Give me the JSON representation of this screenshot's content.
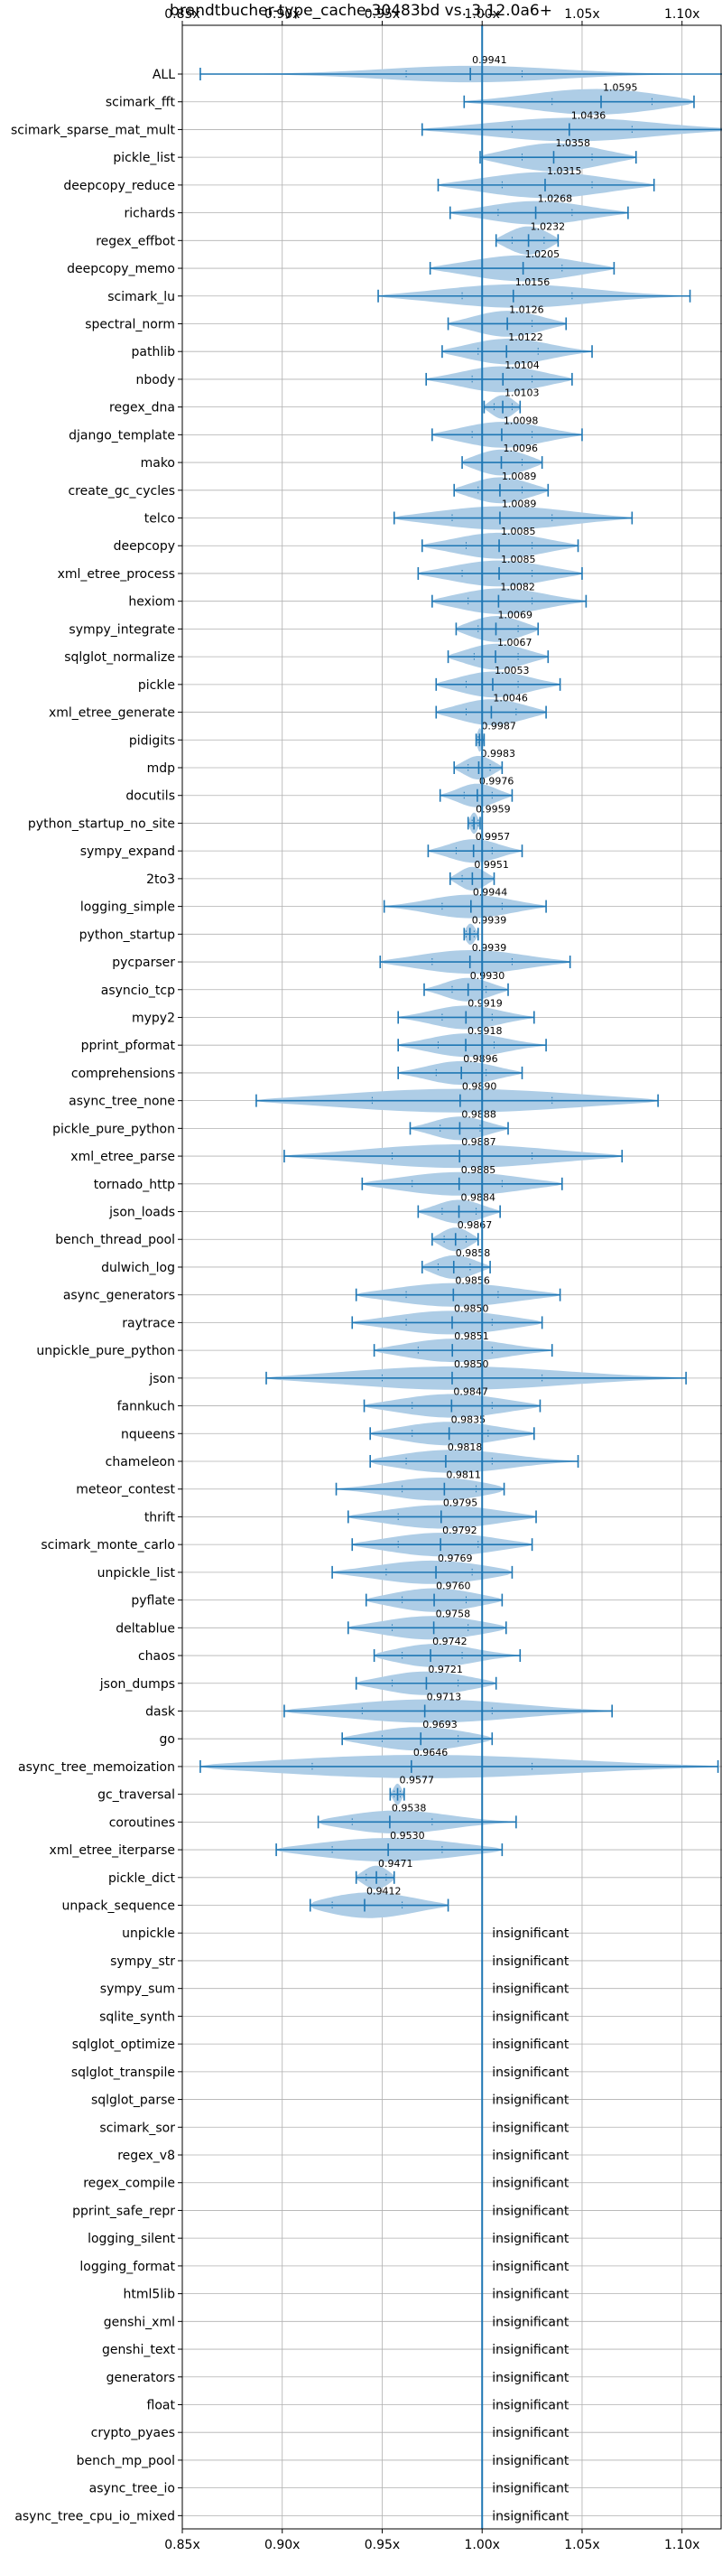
{
  "chart_data": {
    "type": "violin",
    "title": "brandtbucher-type_cache-30483bd vs. 3.12.0a6+",
    "xlabel": "",
    "ylabel": "",
    "xlim": [
      0.85,
      1.12
    ],
    "xticks": [
      0.85,
      0.9,
      0.95,
      1.0,
      1.05,
      1.1
    ],
    "xtick_labels": [
      "0.85x",
      "0.90x",
      "0.95x",
      "1.00x",
      "1.05x",
      "1.10x"
    ],
    "reference_line": 1.0,
    "grid": true,
    "colors": {
      "violin_fill": "#aecde6",
      "line": "#1f77b4",
      "grid": "#b0b0b0",
      "axis": "#000000"
    },
    "insignificant_label": "insignificant",
    "benchmarks": [
      {
        "name": "ALL",
        "value": 0.9941,
        "label": "0.9941",
        "min": 0.859,
        "max": 1.132,
        "q1": 0.962,
        "q3": 1.02,
        "width": 0.35
      },
      {
        "name": "scimark_fft",
        "value": 1.0595,
        "label": "1.0595",
        "min": 0.991,
        "max": 1.106,
        "q1": 1.035,
        "q3": 1.085,
        "width": 0.55
      },
      {
        "name": "scimark_sparse_mat_mult",
        "value": 1.0436,
        "label": "1.0436",
        "min": 0.97,
        "max": 1.131,
        "q1": 1.015,
        "q3": 1.075,
        "width": 0.5
      },
      {
        "name": "pickle_list",
        "value": 1.0358,
        "label": "1.0358",
        "min": 0.999,
        "max": 1.077,
        "q1": 1.02,
        "q3": 1.055,
        "width": 0.6
      },
      {
        "name": "deepcopy_reduce",
        "value": 1.0315,
        "label": "1.0315",
        "min": 0.978,
        "max": 1.086,
        "q1": 1.01,
        "q3": 1.055,
        "width": 0.55
      },
      {
        "name": "richards",
        "value": 1.0268,
        "label": "1.0268",
        "min": 0.984,
        "max": 1.073,
        "q1": 1.008,
        "q3": 1.045,
        "width": 0.5
      },
      {
        "name": "regex_effbot",
        "value": 1.0232,
        "label": "1.0232",
        "min": 1.007,
        "max": 1.038,
        "q1": 1.015,
        "q3": 1.031,
        "width": 0.6
      },
      {
        "name": "deepcopy_memo",
        "value": 1.0205,
        "label": "1.0205",
        "min": 0.974,
        "max": 1.066,
        "q1": 1.0,
        "q3": 1.04,
        "width": 0.55
      },
      {
        "name": "scimark_lu",
        "value": 1.0156,
        "label": "1.0156",
        "min": 0.948,
        "max": 1.104,
        "q1": 0.99,
        "q3": 1.045,
        "width": 0.5
      },
      {
        "name": "spectral_norm",
        "value": 1.0126,
        "label": "1.0126",
        "min": 0.983,
        "max": 1.042,
        "q1": 1.0,
        "q3": 1.025,
        "width": 0.55
      },
      {
        "name": "pathlib",
        "value": 1.0122,
        "label": "1.0122",
        "min": 0.98,
        "max": 1.055,
        "q1": 0.998,
        "q3": 1.028,
        "width": 0.55
      },
      {
        "name": "nbody",
        "value": 1.0104,
        "label": "1.0104",
        "min": 0.972,
        "max": 1.045,
        "q1": 0.995,
        "q3": 1.025,
        "width": 0.55
      },
      {
        "name": "regex_dna",
        "value": 1.0103,
        "label": "1.0103",
        "min": 1.001,
        "max": 1.019,
        "q1": 1.006,
        "q3": 1.015,
        "width": 0.5
      },
      {
        "name": "django_template",
        "value": 1.0098,
        "label": "1.0098",
        "min": 0.975,
        "max": 1.05,
        "q1": 0.995,
        "q3": 1.025,
        "width": 0.55
      },
      {
        "name": "mako",
        "value": 1.0096,
        "label": "1.0096",
        "min": 0.99,
        "max": 1.03,
        "q1": 1.0,
        "q3": 1.02,
        "width": 0.55
      },
      {
        "name": "create_gc_cycles",
        "value": 1.0089,
        "label": "1.0089",
        "min": 0.986,
        "max": 1.033,
        "q1": 0.998,
        "q3": 1.02,
        "width": 0.55
      },
      {
        "name": "telco",
        "value": 1.0089,
        "label": "1.0089",
        "min": 0.956,
        "max": 1.075,
        "q1": 0.985,
        "q3": 1.035,
        "width": 0.5
      },
      {
        "name": "deepcopy",
        "value": 1.0085,
        "label": "1.0085",
        "min": 0.97,
        "max": 1.048,
        "q1": 0.992,
        "q3": 1.025,
        "width": 0.55
      },
      {
        "name": "xml_etree_process",
        "value": 1.0085,
        "label": "1.0085",
        "min": 0.968,
        "max": 1.05,
        "q1": 0.99,
        "q3": 1.025,
        "width": 0.55
      },
      {
        "name": "hexiom",
        "value": 1.0082,
        "label": "1.0082",
        "min": 0.975,
        "max": 1.052,
        "q1": 0.993,
        "q3": 1.025,
        "width": 0.55
      },
      {
        "name": "sympy_integrate",
        "value": 1.0069,
        "label": "1.0069",
        "min": 0.987,
        "max": 1.028,
        "q1": 0.998,
        "q3": 1.018,
        "width": 0.55
      },
      {
        "name": "sqlglot_normalize",
        "value": 1.0067,
        "label": "1.0067",
        "min": 0.983,
        "max": 1.033,
        "q1": 0.996,
        "q3": 1.018,
        "width": 0.55
      },
      {
        "name": "pickle",
        "value": 1.0053,
        "label": "1.0053",
        "min": 0.977,
        "max": 1.039,
        "q1": 0.992,
        "q3": 1.018,
        "width": 0.55
      },
      {
        "name": "xml_etree_generate",
        "value": 1.0046,
        "label": "1.0046",
        "min": 0.977,
        "max": 1.032,
        "q1": 0.992,
        "q3": 1.017,
        "width": 0.55
      },
      {
        "name": "pidigits",
        "value": 0.9987,
        "label": "0.9987",
        "min": 0.997,
        "max": 1.001,
        "q1": 0.998,
        "q3": 1.0,
        "width": 0.5
      },
      {
        "name": "mdp",
        "value": 0.9983,
        "label": "0.9983",
        "min": 0.986,
        "max": 1.01,
        "q1": 0.993,
        "q3": 1.004,
        "width": 0.5
      },
      {
        "name": "docutils",
        "value": 0.9976,
        "label": "0.9976",
        "min": 0.979,
        "max": 1.015,
        "q1": 0.991,
        "q3": 1.005,
        "width": 0.5
      },
      {
        "name": "python_startup_no_site",
        "value": 0.9959,
        "label": "0.9959",
        "min": 0.993,
        "max": 0.999,
        "q1": 0.995,
        "q3": 0.998,
        "width": 0.45
      },
      {
        "name": "sympy_expand",
        "value": 0.9957,
        "label": "0.9957",
        "min": 0.973,
        "max": 1.02,
        "q1": 0.987,
        "q3": 1.005,
        "width": 0.5
      },
      {
        "name": "2to3",
        "value": 0.9951,
        "label": "0.9951",
        "min": 0.984,
        "max": 1.006,
        "q1": 0.99,
        "q3": 1.0,
        "width": 0.5
      },
      {
        "name": "logging_simple",
        "value": 0.9944,
        "label": "0.9944",
        "min": 0.951,
        "max": 1.032,
        "q1": 0.98,
        "q3": 1.01,
        "width": 0.5
      },
      {
        "name": "python_startup",
        "value": 0.9939,
        "label": "0.9939",
        "min": 0.991,
        "max": 0.998,
        "q1": 0.992,
        "q3": 0.996,
        "width": 0.45
      },
      {
        "name": "pycparser",
        "value": 0.9939,
        "label": "0.9939",
        "min": 0.949,
        "max": 1.044,
        "q1": 0.975,
        "q3": 1.015,
        "width": 0.5
      },
      {
        "name": "asyncio_tcp",
        "value": 0.993,
        "label": "0.9930",
        "min": 0.971,
        "max": 1.013,
        "q1": 0.985,
        "q3": 1.002,
        "width": 0.5
      },
      {
        "name": "mypy2",
        "value": 0.9919,
        "label": "0.9919",
        "min": 0.958,
        "max": 1.026,
        "q1": 0.98,
        "q3": 1.005,
        "width": 0.5
      },
      {
        "name": "pprint_pformat",
        "value": 0.9918,
        "label": "0.9918",
        "min": 0.958,
        "max": 1.032,
        "q1": 0.978,
        "q3": 1.006,
        "width": 0.5
      },
      {
        "name": "comprehensions",
        "value": 0.9896,
        "label": "0.9896",
        "min": 0.958,
        "max": 1.02,
        "q1": 0.977,
        "q3": 1.002,
        "width": 0.5
      },
      {
        "name": "async_tree_none",
        "value": 0.989,
        "label": "0.9890",
        "min": 0.887,
        "max": 1.088,
        "q1": 0.945,
        "q3": 1.035,
        "width": 0.5
      },
      {
        "name": "pickle_pure_python",
        "value": 0.9888,
        "label": "0.9888",
        "min": 0.964,
        "max": 1.013,
        "q1": 0.979,
        "q3": 0.999,
        "width": 0.5
      },
      {
        "name": "xml_etree_parse",
        "value": 0.9887,
        "label": "0.9887",
        "min": 0.901,
        "max": 1.07,
        "q1": 0.955,
        "q3": 1.025,
        "width": 0.5
      },
      {
        "name": "tornado_http",
        "value": 0.9885,
        "label": "0.9885",
        "min": 0.94,
        "max": 1.04,
        "q1": 0.965,
        "q3": 1.01,
        "width": 0.5
      },
      {
        "name": "json_loads",
        "value": 0.9884,
        "label": "0.9884",
        "min": 0.968,
        "max": 1.009,
        "q1": 0.98,
        "q3": 0.997,
        "width": 0.5
      },
      {
        "name": "bench_thread_pool",
        "value": 0.9867,
        "label": "0.9867",
        "min": 0.975,
        "max": 0.998,
        "q1": 0.981,
        "q3": 0.992,
        "width": 0.5
      },
      {
        "name": "dulwich_log",
        "value": 0.9858,
        "label": "0.9858",
        "min": 0.97,
        "max": 1.004,
        "q1": 0.978,
        "q3": 0.994,
        "width": 0.5
      },
      {
        "name": "async_generators",
        "value": 0.9856,
        "label": "0.9856",
        "min": 0.937,
        "max": 1.039,
        "q1": 0.962,
        "q3": 1.008,
        "width": 0.5
      },
      {
        "name": "raytrace",
        "value": 0.985,
        "label": "0.9850",
        "min": 0.935,
        "max": 1.03,
        "q1": 0.962,
        "q3": 1.005,
        "width": 0.5
      },
      {
        "name": "unpickle_pure_python",
        "value": 0.9851,
        "label": "0.9851",
        "min": 0.946,
        "max": 1.035,
        "q1": 0.968,
        "q3": 1.005,
        "width": 0.5
      },
      {
        "name": "json",
        "value": 0.985,
        "label": "0.9850",
        "min": 0.892,
        "max": 1.102,
        "q1": 0.95,
        "q3": 1.03,
        "width": 0.5
      },
      {
        "name": "fannkuch",
        "value": 0.9847,
        "label": "0.9847",
        "min": 0.941,
        "max": 1.029,
        "q1": 0.965,
        "q3": 1.005,
        "width": 0.5
      },
      {
        "name": "nqueens",
        "value": 0.9835,
        "label": "0.9835",
        "min": 0.944,
        "max": 1.026,
        "q1": 0.965,
        "q3": 1.003,
        "width": 0.5
      },
      {
        "name": "chameleon",
        "value": 0.9818,
        "label": "0.9818",
        "min": 0.944,
        "max": 1.048,
        "q1": 0.962,
        "q3": 1.005,
        "width": 0.5
      },
      {
        "name": "meteor_contest",
        "value": 0.9811,
        "label": "0.9811",
        "min": 0.927,
        "max": 1.011,
        "q1": 0.96,
        "q3": 0.997,
        "width": 0.5
      },
      {
        "name": "thrift",
        "value": 0.9795,
        "label": "0.9795",
        "min": 0.933,
        "max": 1.027,
        "q1": 0.958,
        "q3": 1.0,
        "width": 0.5
      },
      {
        "name": "scimark_monte_carlo",
        "value": 0.9792,
        "label": "0.9792",
        "min": 0.935,
        "max": 1.025,
        "q1": 0.958,
        "q3": 0.998,
        "width": 0.5
      },
      {
        "name": "unpickle_list",
        "value": 0.9769,
        "label": "0.9769",
        "min": 0.925,
        "max": 1.015,
        "q1": 0.952,
        "q3": 0.995,
        "width": 0.5
      },
      {
        "name": "pyflate",
        "value": 0.976,
        "label": "0.9760",
        "min": 0.942,
        "max": 1.01,
        "q1": 0.96,
        "q3": 0.992,
        "width": 0.5
      },
      {
        "name": "deltablue",
        "value": 0.9758,
        "label": "0.9758",
        "min": 0.933,
        "max": 1.012,
        "q1": 0.955,
        "q3": 0.993,
        "width": 0.5
      },
      {
        "name": "chaos",
        "value": 0.9742,
        "label": "0.9742",
        "min": 0.946,
        "max": 1.019,
        "q1": 0.96,
        "q3": 0.99,
        "width": 0.5
      },
      {
        "name": "json_dumps",
        "value": 0.9721,
        "label": "0.9721",
        "min": 0.937,
        "max": 1.007,
        "q1": 0.955,
        "q3": 0.988,
        "width": 0.5
      },
      {
        "name": "dask",
        "value": 0.9713,
        "label": "0.9713",
        "min": 0.901,
        "max": 1.065,
        "q1": 0.94,
        "q3": 1.005,
        "width": 0.5
      },
      {
        "name": "go",
        "value": 0.9693,
        "label": "0.9693",
        "min": 0.93,
        "max": 1.005,
        "q1": 0.95,
        "q3": 0.988,
        "width": 0.5
      },
      {
        "name": "async_tree_memoization",
        "value": 0.9646,
        "label": "0.9646",
        "min": 0.859,
        "max": 1.118,
        "q1": 0.915,
        "q3": 1.025,
        "width": 0.5
      },
      {
        "name": "gc_traversal",
        "value": 0.9577,
        "label": "0.9577",
        "min": 0.954,
        "max": 0.961,
        "q1": 0.956,
        "q3": 0.959,
        "width": 0.45
      },
      {
        "name": "coroutines",
        "value": 0.9538,
        "label": "0.9538",
        "min": 0.918,
        "max": 1.017,
        "q1": 0.935,
        "q3": 0.975,
        "width": 0.5
      },
      {
        "name": "xml_etree_iterparse",
        "value": 0.953,
        "label": "0.9530",
        "min": 0.897,
        "max": 1.01,
        "q1": 0.925,
        "q3": 0.98,
        "width": 0.5
      },
      {
        "name": "pickle_dict",
        "value": 0.9471,
        "label": "0.9471",
        "min": 0.937,
        "max": 0.956,
        "q1": 0.942,
        "q3": 0.952,
        "width": 0.5
      },
      {
        "name": "unpack_sequence",
        "value": 0.9412,
        "label": "0.9412",
        "min": 0.914,
        "max": 0.983,
        "q1": 0.925,
        "q3": 0.96,
        "width": 0.55
      },
      {
        "name": "unpickle",
        "insignificant": true
      },
      {
        "name": "sympy_str",
        "insignificant": true
      },
      {
        "name": "sympy_sum",
        "insignificant": true
      },
      {
        "name": "sqlite_synth",
        "insignificant": true
      },
      {
        "name": "sqlglot_optimize",
        "insignificant": true
      },
      {
        "name": "sqlglot_transpile",
        "insignificant": true
      },
      {
        "name": "sqlglot_parse",
        "insignificant": true
      },
      {
        "name": "scimark_sor",
        "insignificant": true
      },
      {
        "name": "regex_v8",
        "insignificant": true
      },
      {
        "name": "regex_compile",
        "insignificant": true
      },
      {
        "name": "pprint_safe_repr",
        "insignificant": true
      },
      {
        "name": "logging_silent",
        "insignificant": true
      },
      {
        "name": "logging_format",
        "insignificant": true
      },
      {
        "name": "html5lib",
        "insignificant": true
      },
      {
        "name": "genshi_xml",
        "insignificant": true
      },
      {
        "name": "genshi_text",
        "insignificant": true
      },
      {
        "name": "generators",
        "insignificant": true
      },
      {
        "name": "float",
        "insignificant": true
      },
      {
        "name": "crypto_pyaes",
        "insignificant": true
      },
      {
        "name": "bench_mp_pool",
        "insignificant": true
      },
      {
        "name": "async_tree_io",
        "insignificant": true
      },
      {
        "name": "async_tree_cpu_io_mixed",
        "insignificant": true
      }
    ]
  }
}
